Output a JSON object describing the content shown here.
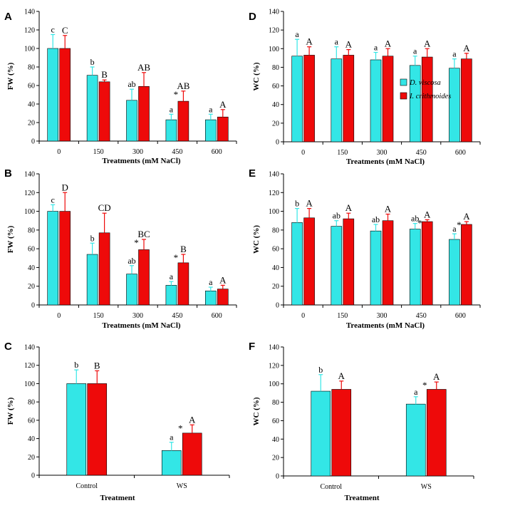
{
  "colors": {
    "cyan": "#33E6E6",
    "red": "#EE0A0A",
    "axis": "#000000"
  },
  "legend": [
    "D. viscosa",
    "I. crithmoides"
  ],
  "chart_data": [
    {
      "id": "A",
      "type": "bar",
      "ylabel": "FW (%)",
      "xlabel": "Treatments  (mM  NaCl)",
      "ylim": [
        0,
        140
      ],
      "yticks": [
        "0",
        "20",
        "40",
        "60",
        "80",
        "100",
        "120",
        "140"
      ],
      "categories": [
        "0",
        "150",
        "300",
        "450",
        "600"
      ],
      "series": [
        {
          "name": "D. viscosa",
          "values": [
            100,
            71,
            44,
            23,
            23
          ],
          "err": [
            15,
            9,
            12,
            6,
            6
          ],
          "letters": [
            "c",
            "b",
            "ab",
            "a",
            "a"
          ]
        },
        {
          "name": "I. crithmoides",
          "values": [
            100,
            64,
            59,
            43,
            26
          ],
          "err": [
            14,
            2,
            15,
            11,
            8
          ],
          "letters": [
            "C",
            "B",
            "AB",
            "AB",
            "A"
          ],
          "stars": [
            false,
            false,
            false,
            true,
            false
          ]
        }
      ]
    },
    {
      "id": "B",
      "type": "bar",
      "ylabel": "FW (%)",
      "xlabel": "Treatments  (mM  NaCl)",
      "ylim": [
        0,
        140
      ],
      "yticks": [
        "0",
        "20",
        "40",
        "60",
        "80",
        "100",
        "120",
        "140"
      ],
      "categories": [
        "0",
        "150",
        "300",
        "450",
        "600"
      ],
      "series": [
        {
          "name": "D. viscosa",
          "values": [
            100,
            54,
            33,
            21,
            15
          ],
          "err": [
            7,
            12,
            9,
            4,
            4
          ],
          "letters": [
            "c",
            "b",
            "ab",
            "a",
            "a"
          ]
        },
        {
          "name": "I. crithmoides",
          "values": [
            100,
            77,
            59,
            45,
            17
          ],
          "err": [
            20,
            21,
            11,
            9,
            4
          ],
          "letters": [
            "D",
            "CD",
            "BC",
            "B",
            "A"
          ],
          "stars": [
            false,
            false,
            true,
            true,
            false
          ]
        }
      ]
    },
    {
      "id": "C",
      "type": "bar",
      "ylabel": "FW (%)",
      "xlabel": "Treatment",
      "ylim": [
        0,
        140
      ],
      "yticks": [
        "0",
        "20",
        "40",
        "60",
        "80",
        "100",
        "120",
        "140"
      ],
      "categories": [
        "Control",
        "WS"
      ],
      "series": [
        {
          "name": "D. viscosa",
          "values": [
            100,
            27
          ],
          "err": [
            15,
            9
          ],
          "letters": [
            "b",
            "a"
          ]
        },
        {
          "name": "I. crithmoides",
          "values": [
            100,
            46
          ],
          "err": [
            14,
            9
          ],
          "letters": [
            "B",
            "A"
          ],
          "stars": [
            false,
            true
          ]
        }
      ]
    },
    {
      "id": "D",
      "type": "bar",
      "ylabel": "WC (%)",
      "xlabel": "Treatments  (mM  NaCl)",
      "ylim": [
        0,
        140
      ],
      "yticks": [
        "0",
        "20",
        "40",
        "60",
        "80",
        "100",
        "120",
        "140"
      ],
      "categories": [
        "0",
        "150",
        "300",
        "450",
        "600"
      ],
      "series": [
        {
          "name": "D. viscosa",
          "values": [
            92,
            89,
            88,
            82,
            79
          ],
          "err": [
            18,
            13,
            8,
            10,
            10
          ],
          "letters": [
            "a",
            "a",
            "a",
            "a",
            "a"
          ]
        },
        {
          "name": "I. crithmoides",
          "values": [
            93,
            93,
            92,
            91,
            89
          ],
          "err": [
            9,
            6,
            8,
            9,
            6
          ],
          "letters": [
            "A",
            "A",
            "A",
            "A",
            "A"
          ],
          "stars": [
            false,
            false,
            false,
            false,
            false
          ]
        }
      ]
    },
    {
      "id": "E",
      "type": "bar",
      "ylabel": "WC (%)",
      "xlabel": "Treatments  (mM  NaCl)",
      "ylim": [
        0,
        140
      ],
      "yticks": [
        "0",
        "20",
        "40",
        "60",
        "80",
        "100",
        "120",
        "140"
      ],
      "categories": [
        "0",
        "150",
        "300",
        "450",
        "600"
      ],
      "series": [
        {
          "name": "D. viscosa",
          "values": [
            88,
            84,
            79,
            81,
            70
          ],
          "err": [
            15,
            6,
            7,
            6,
            6
          ],
          "letters": [
            "b",
            "ab",
            "ab",
            "ab",
            "a"
          ]
        },
        {
          "name": "I. crithmoides",
          "values": [
            93,
            92,
            90,
            89,
            86
          ],
          "err": [
            10,
            6,
            7,
            2,
            3
          ],
          "letters": [
            "A",
            "A",
            "A",
            "A",
            "A"
          ],
          "stars": [
            false,
            false,
            false,
            true,
            true
          ]
        }
      ]
    },
    {
      "id": "F",
      "type": "bar",
      "ylabel": "WC (%)",
      "xlabel": "Treatment",
      "ylim": [
        0,
        140
      ],
      "yticks": [
        "0",
        "20",
        "40",
        "60",
        "80",
        "100",
        "120",
        "140"
      ],
      "categories": [
        "Control",
        "WS"
      ],
      "series": [
        {
          "name": "D. viscosa",
          "values": [
            92,
            78
          ],
          "err": [
            18,
            8
          ],
          "letters": [
            "b",
            "a"
          ]
        },
        {
          "name": "I. crithmoides",
          "values": [
            94,
            94
          ],
          "err": [
            9,
            8
          ],
          "letters": [
            "A",
            "A"
          ],
          "stars": [
            false,
            true
          ]
        }
      ]
    }
  ]
}
